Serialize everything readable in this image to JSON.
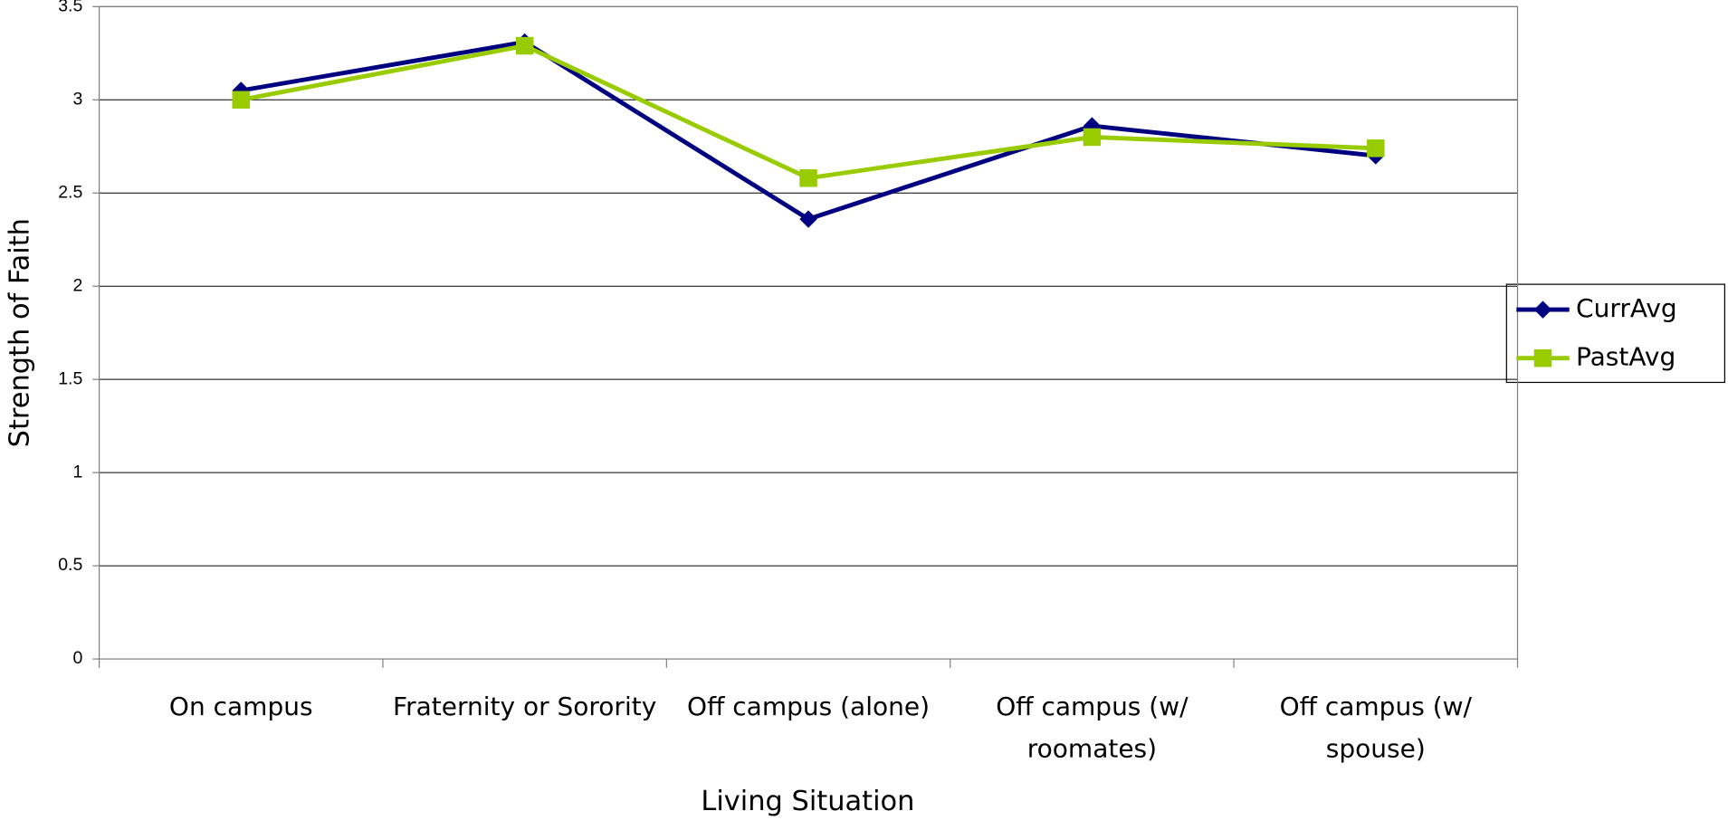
{
  "chart_data": {
    "type": "line",
    "x_label": "Living Situation",
    "y_label": "Strength of Faith",
    "categories": [
      "On campus",
      "Fraternity or Sorority",
      "Off campus (alone)",
      "Off campus (w/ roomates)",
      "Off campus (w/ spouse)"
    ],
    "series": [
      {
        "name": "CurrAvg",
        "color": "#000080",
        "marker": "diamond",
        "values": [
          3.05,
          3.31,
          2.36,
          2.86,
          2.7
        ]
      },
      {
        "name": "PastAvg",
        "color": "#99cc00",
        "marker": "square",
        "values": [
          3.0,
          3.29,
          2.58,
          2.8,
          2.74
        ]
      }
    ],
    "ylim": [
      0,
      3.5
    ],
    "yticks": [
      0,
      0.5,
      1,
      1.5,
      2,
      2.5,
      3,
      3.5
    ],
    "grid": true,
    "legend": "right"
  }
}
